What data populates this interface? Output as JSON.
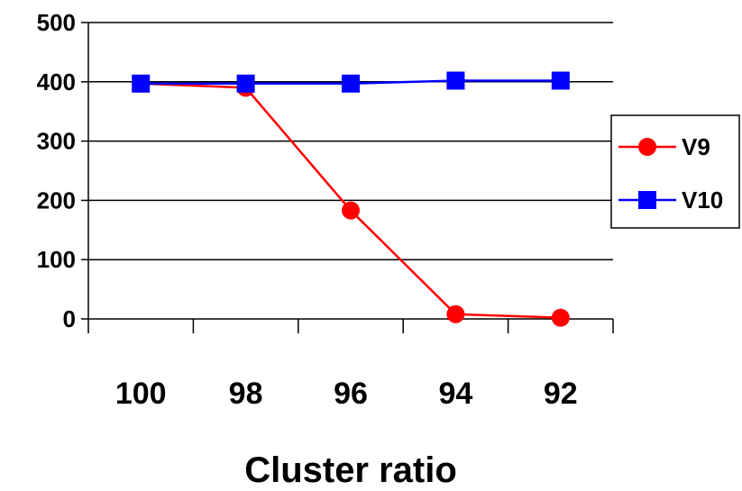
{
  "chart_data": {
    "type": "line",
    "title": "",
    "xlabel": "Cluster ratio",
    "ylabel": "",
    "categories": [
      "100",
      "98",
      "96",
      "94",
      "92"
    ],
    "ylim": [
      0,
      500
    ],
    "yticks": [
      "0",
      "100",
      "200",
      "300",
      "400",
      "500"
    ],
    "grid": true,
    "legend_position": "right",
    "series": [
      {
        "name": "V9",
        "values": [
          397,
          390,
          183,
          8,
          2
        ],
        "color": "#ff0000",
        "marker": "circle"
      },
      {
        "name": "V10",
        "values": [
          397,
          397,
          397,
          402,
          402
        ],
        "color": "#0000ff",
        "marker": "square"
      }
    ]
  }
}
